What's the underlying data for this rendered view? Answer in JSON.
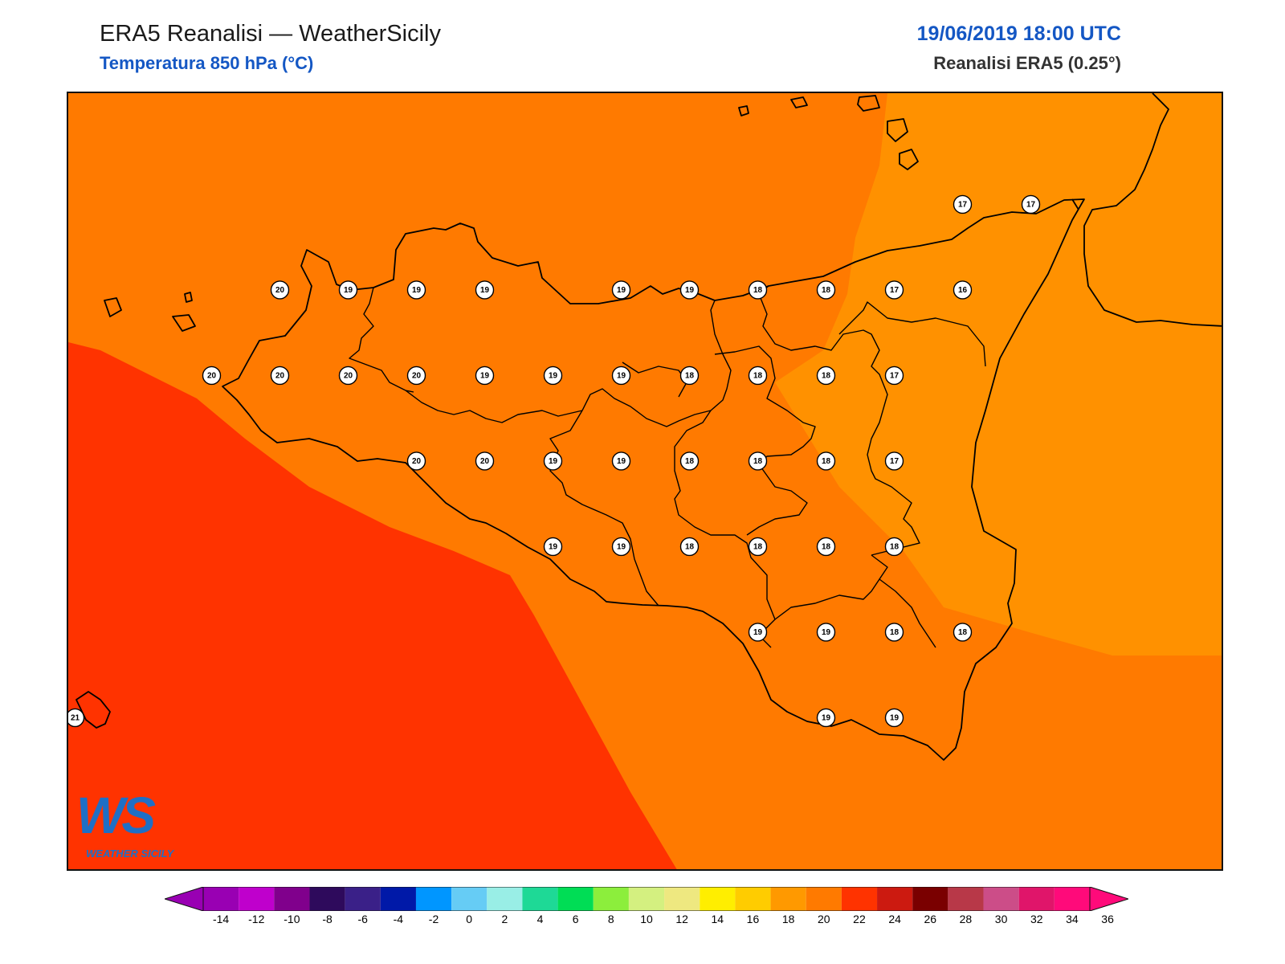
{
  "header": {
    "title": "ERA5 Reanalisi — WeatherSicily",
    "subtitle": "Temperatura 850 hPa (°C)",
    "datetime": "19/06/2019 18:00 UTC",
    "source": "Reanalisi ERA5 (0.25°)"
  },
  "logo": {
    "letters": "WS",
    "name": "WEATHER SICILY"
  },
  "field_colors": {
    "t16_18": "#ff9100",
    "t18_20": "#ff7a00",
    "t20_22": "#ff3300"
  },
  "stations": [
    {
      "value": "20",
      "lon": 12.5,
      "lat": 38.25
    },
    {
      "value": "19",
      "lon": 13.0,
      "lat": 38.25
    },
    {
      "value": "19",
      "lon": 13.5,
      "lat": 38.25
    },
    {
      "value": "19",
      "lon": 14.0,
      "lat": 38.25
    },
    {
      "value": "19",
      "lon": 15.0,
      "lat": 38.25
    },
    {
      "value": "19",
      "lon": 15.5,
      "lat": 38.25
    },
    {
      "value": "18",
      "lon": 16.0,
      "lat": 38.25
    },
    {
      "value": "18",
      "lon": 16.5,
      "lat": 38.25
    },
    {
      "value": "17",
      "lon": 17.0,
      "lat": 38.25
    },
    {
      "value": "16",
      "lon": 17.5,
      "lat": 38.25
    },
    {
      "value": "17",
      "lon": 17.5,
      "lat": 38.75
    },
    {
      "value": "17",
      "lon": 18.0,
      "lat": 38.75
    },
    {
      "value": "20",
      "lon": 12.0,
      "lat": 37.75
    },
    {
      "value": "20",
      "lon": 12.5,
      "lat": 37.75
    },
    {
      "value": "20",
      "lon": 13.0,
      "lat": 37.75
    },
    {
      "value": "20",
      "lon": 13.5,
      "lat": 37.75
    },
    {
      "value": "19",
      "lon": 14.0,
      "lat": 37.75
    },
    {
      "value": "19",
      "lon": 14.5,
      "lat": 37.75
    },
    {
      "value": "19",
      "lon": 15.0,
      "lat": 37.75
    },
    {
      "value": "18",
      "lon": 15.5,
      "lat": 37.75
    },
    {
      "value": "18",
      "lon": 16.0,
      "lat": 37.75
    },
    {
      "value": "18",
      "lon": 16.5,
      "lat": 37.75
    },
    {
      "value": "17",
      "lon": 17.0,
      "lat": 37.75
    },
    {
      "value": "20",
      "lon": 13.5,
      "lat": 37.25
    },
    {
      "value": "20",
      "lon": 14.0,
      "lat": 37.25
    },
    {
      "value": "19",
      "lon": 14.5,
      "lat": 37.25
    },
    {
      "value": "19",
      "lon": 15.0,
      "lat": 37.25
    },
    {
      "value": "18",
      "lon": 15.5,
      "lat": 37.25
    },
    {
      "value": "18",
      "lon": 16.0,
      "lat": 37.25
    },
    {
      "value": "18",
      "lon": 16.5,
      "lat": 37.25
    },
    {
      "value": "17",
      "lon": 17.0,
      "lat": 37.25
    },
    {
      "value": "19",
      "lon": 14.5,
      "lat": 36.75
    },
    {
      "value": "19",
      "lon": 15.0,
      "lat": 36.75
    },
    {
      "value": "18",
      "lon": 15.5,
      "lat": 36.75
    },
    {
      "value": "18",
      "lon": 16.0,
      "lat": 36.75
    },
    {
      "value": "18",
      "lon": 16.5,
      "lat": 36.75
    },
    {
      "value": "18",
      "lon": 17.0,
      "lat": 36.75
    },
    {
      "value": "19",
      "lon": 16.0,
      "lat": 36.25
    },
    {
      "value": "19",
      "lon": 16.5,
      "lat": 36.25
    },
    {
      "value": "18",
      "lon": 17.0,
      "lat": 36.25
    },
    {
      "value": "18",
      "lon": 17.5,
      "lat": 36.25
    },
    {
      "value": "19",
      "lon": 16.5,
      "lat": 35.75
    },
    {
      "value": "19",
      "lon": 17.0,
      "lat": 35.75
    },
    {
      "value": "21",
      "lon": 11.0,
      "lat": 35.75
    }
  ],
  "colorbar": {
    "colors": [
      "#9900b3",
      "#bf00cc",
      "#80008c",
      "#2e0a5c",
      "#3a2088",
      "#0019a8",
      "#0096ff",
      "#66ccf5",
      "#99eee6",
      "#1ed996",
      "#00dd55",
      "#8cee3c",
      "#d4f080",
      "#eee880",
      "#ffee00",
      "#ffcc00",
      "#ff9900",
      "#ff7a00",
      "#ff3300",
      "#cc1a10",
      "#7a0000",
      "#b83848",
      "#cc4d88",
      "#e0156a",
      "#ff0a7a"
    ],
    "ticks": [
      "-14",
      "-12",
      "-10",
      "-8",
      "-6",
      "-4",
      "-2",
      "0",
      "2",
      "4",
      "6",
      "8",
      "10",
      "12",
      "14",
      "16",
      "18",
      "20",
      "22",
      "24",
      "26",
      "28",
      "30",
      "32",
      "34",
      "36"
    ]
  }
}
